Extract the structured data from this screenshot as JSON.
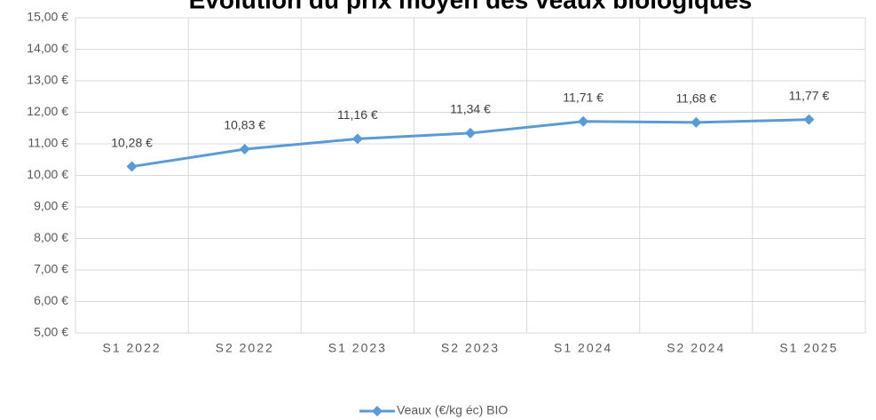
{
  "chart_data": {
    "type": "line",
    "title": "Evolution du prix moyen des veaux biologiques",
    "categories": [
      "S1 2022",
      "S2 2022",
      "S1 2023",
      "S2 2023",
      "S1 2024",
      "S2 2024",
      "S1 2025"
    ],
    "series": [
      {
        "name": "Veaux (€/kg éc) BIO",
        "color": "#5b9bd5",
        "values": [
          10.28,
          10.83,
          11.16,
          11.34,
          11.71,
          11.68,
          11.77
        ],
        "value_labels": [
          "10,28 €",
          "10,83 €",
          "11,16 €",
          "11,34 €",
          "11,71 €",
          "11,68 €",
          "11,77 €"
        ]
      }
    ],
    "ylim": [
      5,
      15
    ],
    "yticks": [
      {
        "value": 5,
        "label": "5,00 €"
      },
      {
        "value": 6,
        "label": "6,00 €"
      },
      {
        "value": 7,
        "label": "7,00 €"
      },
      {
        "value": 8,
        "label": "8,00 €"
      },
      {
        "value": 9,
        "label": "9,00 €"
      },
      {
        "value": 10,
        "label": "10,00 €"
      },
      {
        "value": 11,
        "label": "11,00 €"
      },
      {
        "value": 12,
        "label": "12,00 €"
      },
      {
        "value": 13,
        "label": "13,00 €"
      },
      {
        "value": 14,
        "label": "14,00 €"
      },
      {
        "value": 15,
        "label": "15,00 €"
      }
    ],
    "grid": true,
    "legend": "bottom"
  }
}
